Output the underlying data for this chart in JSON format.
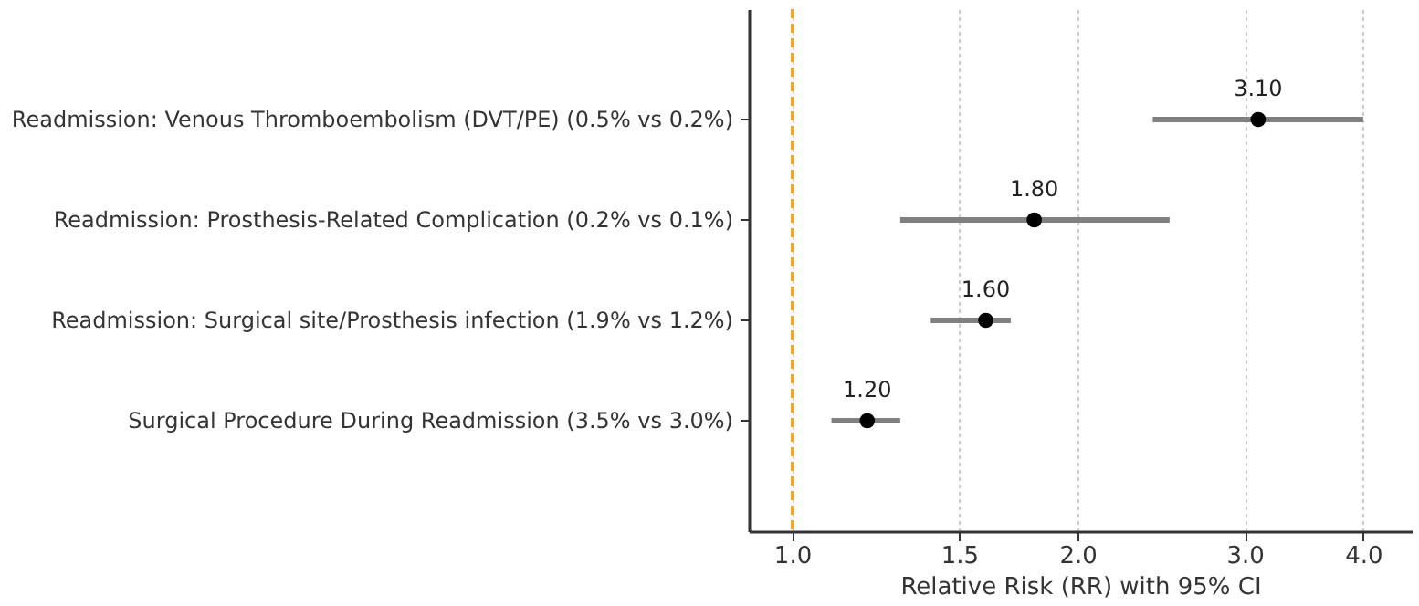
{
  "chart_data": {
    "type": "scatter",
    "categories": [
      "Readmission: Venous Thromboembolism (DVT/PE)  (0.5% vs 0.2%)",
      "Readmission: Prosthesis-Related Complication  (0.2% vs 0.1%)",
      "Readmission: Surgical site/Prosthesis infection  (1.9% vs 1.2%)",
      "Surgical Procedure During Readmission  (3.5% vs 3.0%)"
    ],
    "values": [
      3.1,
      1.8,
      1.6,
      1.2
    ],
    "errors": [
      [
        2.4,
        4.0
      ],
      [
        1.3,
        2.5
      ],
      [
        1.4,
        1.7
      ],
      [
        1.1,
        1.3
      ]
    ],
    "value_labels": [
      "3.10",
      "1.80",
      "1.60",
      "1.20"
    ],
    "color": "#000000",
    "orientation": "horizontal",
    "xlabel": "Relative Risk (RR) with 95% CI",
    "log": "x",
    "xlim": [
      0.9,
      4.5
    ],
    "xticks": [
      {
        "value": 1,
        "label": "1.0"
      },
      {
        "value": 1.5,
        "label": "1.5"
      },
      {
        "value": 2,
        "label": "2.0"
      },
      {
        "value": 3,
        "label": "3.0"
      },
      {
        "value": 4,
        "label": "4.0"
      }
    ],
    "ref_lines": [
      {
        "axis": "x",
        "value": 1,
        "color": "#ffa500",
        "line_style": "dashed"
      }
    ],
    "grid": "x",
    "marker": "circle"
  }
}
